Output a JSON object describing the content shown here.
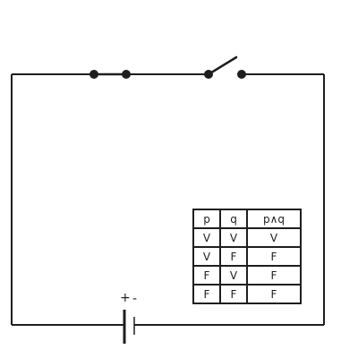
{
  "battery": {
    "plus": "+",
    "minus": "-"
  },
  "truth_table": {
    "headers": [
      "p",
      "q",
      "p∧q"
    ],
    "rows": [
      [
        "V",
        "V",
        "V"
      ],
      [
        "V",
        "F",
        "F"
      ],
      [
        "F",
        "V",
        "F"
      ],
      [
        "F",
        "F",
        "F"
      ]
    ]
  },
  "switches": [
    {
      "name": "switch-p",
      "state": "closed"
    },
    {
      "name": "switch-q",
      "state": "open"
    }
  ],
  "colors": {
    "stroke": "#1e1e1e",
    "background": "#ffffff"
  }
}
